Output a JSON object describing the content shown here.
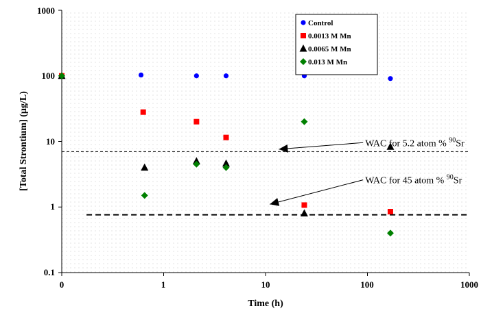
{
  "chart_data": {
    "type": "scatter",
    "xscale": "log",
    "yscale": "log",
    "xlabel": "Time (h)",
    "ylabel": "[Total Strontium]  (µg/L)",
    "xlim": [
      0.1,
      1000
    ],
    "ylim": [
      0.1,
      1000
    ],
    "x_tick_labels": [
      "0",
      "1",
      "10",
      "100",
      "1000"
    ],
    "y_tick_labels": [
      "0.1",
      "1",
      "10",
      "100",
      "1000"
    ],
    "grid": "dotted",
    "legend_position": "top-right",
    "series": [
      {
        "name": "Control",
        "color": "#0000ff",
        "marker": "circle",
        "points": [
          {
            "x": 0.1,
            "y": 100
          },
          {
            "x": 0.6,
            "y": 103
          },
          {
            "x": 2.1,
            "y": 100
          },
          {
            "x": 4.1,
            "y": 100
          },
          {
            "x": 24,
            "y": 100
          },
          {
            "x": 168,
            "y": 91
          }
        ]
      },
      {
        "name": "0.0013 M Mn",
        "color": "#ff0000",
        "marker": "square",
        "points": [
          {
            "x": 0.1,
            "y": 100
          },
          {
            "x": 0.63,
            "y": 28
          },
          {
            "x": 2.1,
            "y": 20
          },
          {
            "x": 4.1,
            "y": 11.5
          },
          {
            "x": 24,
            "y": 1.07
          },
          {
            "x": 168,
            "y": 0.85
          }
        ]
      },
      {
        "name": "0.0065 M Mn",
        "color": "#000000",
        "marker": "triangle",
        "points": [
          {
            "x": 0.1,
            "y": 100
          },
          {
            "x": 0.65,
            "y": 4.0
          },
          {
            "x": 2.1,
            "y": 5.0
          },
          {
            "x": 4.1,
            "y": 4.6
          },
          {
            "x": 24,
            "y": 0.8
          },
          {
            "x": 168,
            "y": 8.3
          }
        ]
      },
      {
        "name": "0.013 M Mn",
        "color": "#008000",
        "marker": "diamond",
        "points": [
          {
            "x": 0.1,
            "y": 100
          },
          {
            "x": 0.65,
            "y": 1.5
          },
          {
            "x": 2.1,
            "y": 4.5
          },
          {
            "x": 4.1,
            "y": 4.0
          },
          {
            "x": 24,
            "y": 20
          },
          {
            "x": 168,
            "y": 0.4
          }
        ]
      }
    ],
    "reference_lines": [
      {
        "y": 7.0,
        "x_from": 0.1,
        "x_to": 1000,
        "style": "dashed-thin"
      },
      {
        "y": 0.76,
        "x_from": 0.175,
        "x_to": 1000,
        "style": "dashed-thick"
      }
    ],
    "annotations": [
      {
        "text": "WAC for 5.2 atom % ",
        "sup": "90",
        "tail": "Sr",
        "anchor": {
          "x": 95,
          "y": 8.5
        },
        "arrow_to": {
          "x": 13.5,
          "y": 7.6
        }
      },
      {
        "text": "WAC for 45 atom % ",
        "sup": "90",
        "tail": "Sr",
        "anchor": {
          "x": 95,
          "y": 2.3
        },
        "arrow_to": {
          "x": 11,
          "y": 1.1
        }
      }
    ]
  }
}
